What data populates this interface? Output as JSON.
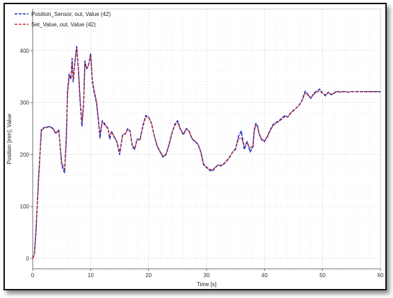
{
  "chart_data": {
    "type": "line",
    "title": "",
    "xlabel": "Time [s]",
    "ylabel": "Position [mm], Value",
    "xlim": [
      0,
      60
    ],
    "ylim": [
      -20,
      480
    ],
    "xticks": [
      "0",
      "10",
      "20",
      "30",
      "40",
      "50",
      "60"
    ],
    "yticks": [
      "0",
      "100",
      "200",
      "300",
      "400"
    ],
    "grid": true,
    "legend_position": "top-left",
    "series": [
      {
        "name": "Position_Sensor, out, Value (42)",
        "color": "#1f2fbf",
        "style": "dashed",
        "x": [
          0,
          0.3,
          0.6,
          1,
          1.5,
          2,
          2.5,
          3,
          3.5,
          4,
          4.5,
          5,
          5.5,
          5.8,
          6,
          6.3,
          6.6,
          6.8,
          7,
          7.3,
          7.6,
          7.9,
          8.2,
          8.5,
          8.8,
          9,
          9.3,
          9.6,
          10,
          10.3,
          10.6,
          11,
          11.3,
          11.6,
          12,
          12.5,
          13,
          13.3,
          13.6,
          14,
          14.5,
          15,
          15.5,
          16,
          16.4,
          16.8,
          17.2,
          17.6,
          18,
          18.5,
          19,
          19.5,
          20,
          20.5,
          21,
          21.5,
          22,
          22.5,
          23,
          23.5,
          24,
          24.5,
          25,
          25.5,
          26,
          26.5,
          27,
          27.5,
          28,
          28.5,
          29,
          29.5,
          30,
          30.5,
          31,
          31.5,
          32,
          32.5,
          33,
          33.5,
          34,
          34.5,
          35,
          35.5,
          36,
          36.5,
          37,
          37.5,
          38,
          38.2,
          38.5,
          38.8,
          39,
          39.5,
          40,
          40.5,
          41,
          41.5,
          42,
          42.5,
          43,
          43.5,
          44,
          44.5,
          45,
          45.5,
          46,
          46.5,
          47,
          47.5,
          48,
          48.5,
          49,
          49.5,
          50,
          50.5,
          51,
          51.5,
          52,
          52.5,
          53,
          53.5,
          54,
          54.5,
          55,
          56,
          57,
          58,
          59,
          60
        ],
        "y": [
          0,
          8,
          60,
          150,
          248,
          252,
          253,
          254,
          250,
          240,
          248,
          180,
          165,
          230,
          320,
          355,
          345,
          385,
          340,
          380,
          408,
          360,
          300,
          255,
          300,
          380,
          365,
          370,
          395,
          340,
          320,
          300,
          270,
          232,
          265,
          258,
          250,
          230,
          245,
          235,
          225,
          200,
          238,
          240,
          250,
          245,
          215,
          210,
          230,
          228,
          255,
          275,
          272,
          260,
          235,
          215,
          205,
          195,
          200,
          218,
          240,
          258,
          265,
          248,
          238,
          250,
          245,
          230,
          225,
          220,
          205,
          180,
          175,
          170,
          168,
          175,
          180,
          178,
          182,
          188,
          195,
          205,
          210,
          235,
          245,
          210,
          225,
          205,
          215,
          245,
          260,
          255,
          242,
          228,
          225,
          235,
          248,
          258,
          262,
          265,
          270,
          275,
          272,
          280,
          285,
          290,
          295,
          305,
          322,
          315,
          308,
          318,
          322,
          326,
          318,
          313,
          320,
          315,
          318,
          322,
          320,
          321,
          321,
          320,
          321,
          321,
          321,
          321,
          321,
          321
        ]
      },
      {
        "name": "Set_Value, out, Value (42)",
        "color": "#c0282f",
        "style": "dashed",
        "x": [
          0,
          0.3,
          0.6,
          1,
          1.5,
          2,
          2.5,
          3,
          3.5,
          4,
          4.5,
          5,
          5.5,
          5.8,
          6,
          6.3,
          6.6,
          6.8,
          7,
          7.3,
          7.6,
          7.9,
          8.2,
          8.5,
          8.8,
          9,
          9.3,
          9.6,
          10,
          10.3,
          10.6,
          11,
          11.3,
          11.6,
          12,
          12.5,
          13,
          13.3,
          13.6,
          14,
          14.5,
          15,
          15.5,
          16,
          16.4,
          16.8,
          17.2,
          17.6,
          18,
          18.5,
          19,
          19.5,
          20,
          20.5,
          21,
          21.5,
          22,
          22.5,
          23,
          23.5,
          24,
          24.5,
          25,
          25.5,
          26,
          26.5,
          27,
          27.5,
          28,
          28.5,
          29,
          29.5,
          30,
          30.5,
          31,
          31.5,
          32,
          32.5,
          33,
          33.5,
          34,
          34.5,
          35,
          35.5,
          36,
          36.5,
          37,
          37.5,
          38,
          38.2,
          38.5,
          38.8,
          39,
          39.5,
          40,
          40.5,
          41,
          41.5,
          42,
          42.5,
          43,
          43.5,
          44,
          44.5,
          45,
          45.5,
          46,
          46.5,
          47,
          47.5,
          48,
          48.5,
          49,
          49.5,
          50,
          50.5,
          51,
          51.5,
          52,
          52.5,
          53,
          53.5,
          54,
          54.5,
          55,
          56,
          57,
          58,
          59,
          60
        ],
        "y": [
          0,
          8,
          58,
          148,
          246,
          251,
          252,
          253,
          249,
          242,
          246,
          185,
          172,
          228,
          315,
          350,
          348,
          378,
          345,
          378,
          405,
          365,
          305,
          262,
          298,
          375,
          368,
          372,
          392,
          345,
          325,
          302,
          272,
          240,
          262,
          256,
          249,
          235,
          243,
          236,
          226,
          205,
          236,
          240,
          248,
          244,
          218,
          212,
          228,
          228,
          252,
          273,
          271,
          259,
          236,
          216,
          206,
          196,
          201,
          218,
          240,
          256,
          262,
          248,
          240,
          249,
          244,
          231,
          226,
          220,
          206,
          182,
          176,
          172,
          170,
          176,
          180,
          179,
          183,
          189,
          196,
          205,
          212,
          230,
          232,
          218,
          222,
          212,
          218,
          242,
          258,
          254,
          242,
          230,
          226,
          235,
          246,
          256,
          260,
          264,
          268,
          273,
          272,
          279,
          284,
          290,
          296,
          304,
          318,
          314,
          310,
          316,
          320,
          322,
          318,
          315,
          319,
          316,
          318,
          321,
          320,
          321,
          321,
          320,
          321,
          321,
          321,
          321,
          321,
          321
        ]
      }
    ]
  }
}
